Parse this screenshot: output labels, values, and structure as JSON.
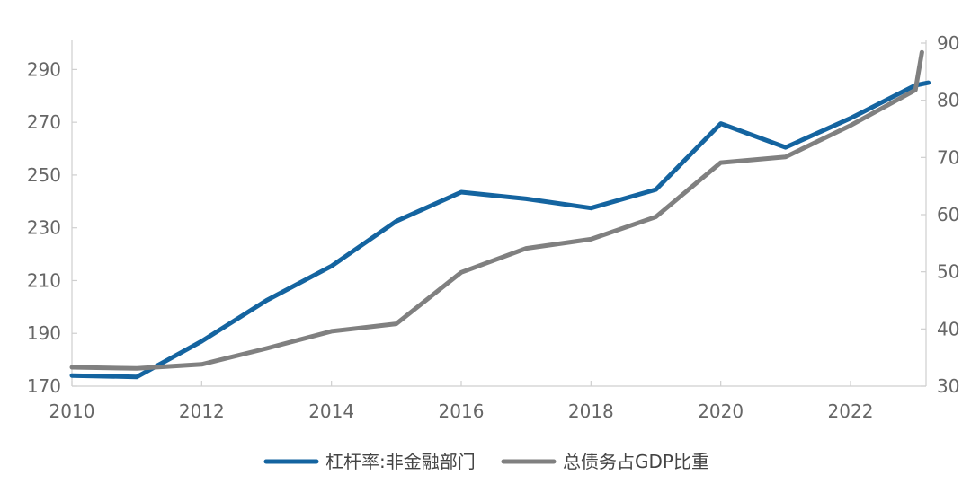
{
  "chart_data": {
    "type": "line",
    "x": [
      2010,
      2011,
      2012,
      2013,
      2014,
      2015,
      2016,
      2017,
      2018,
      2019,
      2020,
      2021,
      2022,
      2023
    ],
    "xlim": [
      2010,
      2023.2
    ],
    "xticks": [
      2010,
      2012,
      2014,
      2016,
      2018,
      2020,
      2022
    ],
    "y_left": {
      "lim": [
        170,
        300
      ],
      "ticks": [
        170,
        190,
        210,
        230,
        250,
        270,
        290
      ]
    },
    "y_right": {
      "lim": [
        30,
        90
      ],
      "ticks": [
        30,
        40,
        50,
        60,
        70,
        80,
        90
      ]
    },
    "series": [
      {
        "name": "杠杆率:非金融部门",
        "axis": "left",
        "color": "#1464a0",
        "x": [
          2010,
          2011,
          2012,
          2013,
          2014,
          2015,
          2016,
          2017,
          2018,
          2019,
          2020,
          2021,
          2022,
          2023,
          2023.2
        ],
        "values": [
          174,
          173.5,
          187,
          202.5,
          215.5,
          232.5,
          243.5,
          241,
          237.5,
          244.5,
          269.5,
          260.5,
          271.5,
          284,
          285
        ]
      },
      {
        "name": "总债务占GDP比重",
        "axis": "right",
        "color": "#808080",
        "x": [
          2010,
          2011,
          2012,
          2013,
          2014,
          2015,
          2016,
          2017,
          2018,
          2019,
          2020,
          2021,
          2022,
          2023,
          2023.1
        ],
        "values": [
          33.3,
          33.1,
          33.8,
          36.6,
          39.6,
          40.9,
          49.9,
          54.1,
          55.7,
          59.6,
          69.1,
          70.1,
          75.6,
          81.8,
          88.4
        ]
      }
    ],
    "legend": "bottom-center",
    "grid": false
  }
}
